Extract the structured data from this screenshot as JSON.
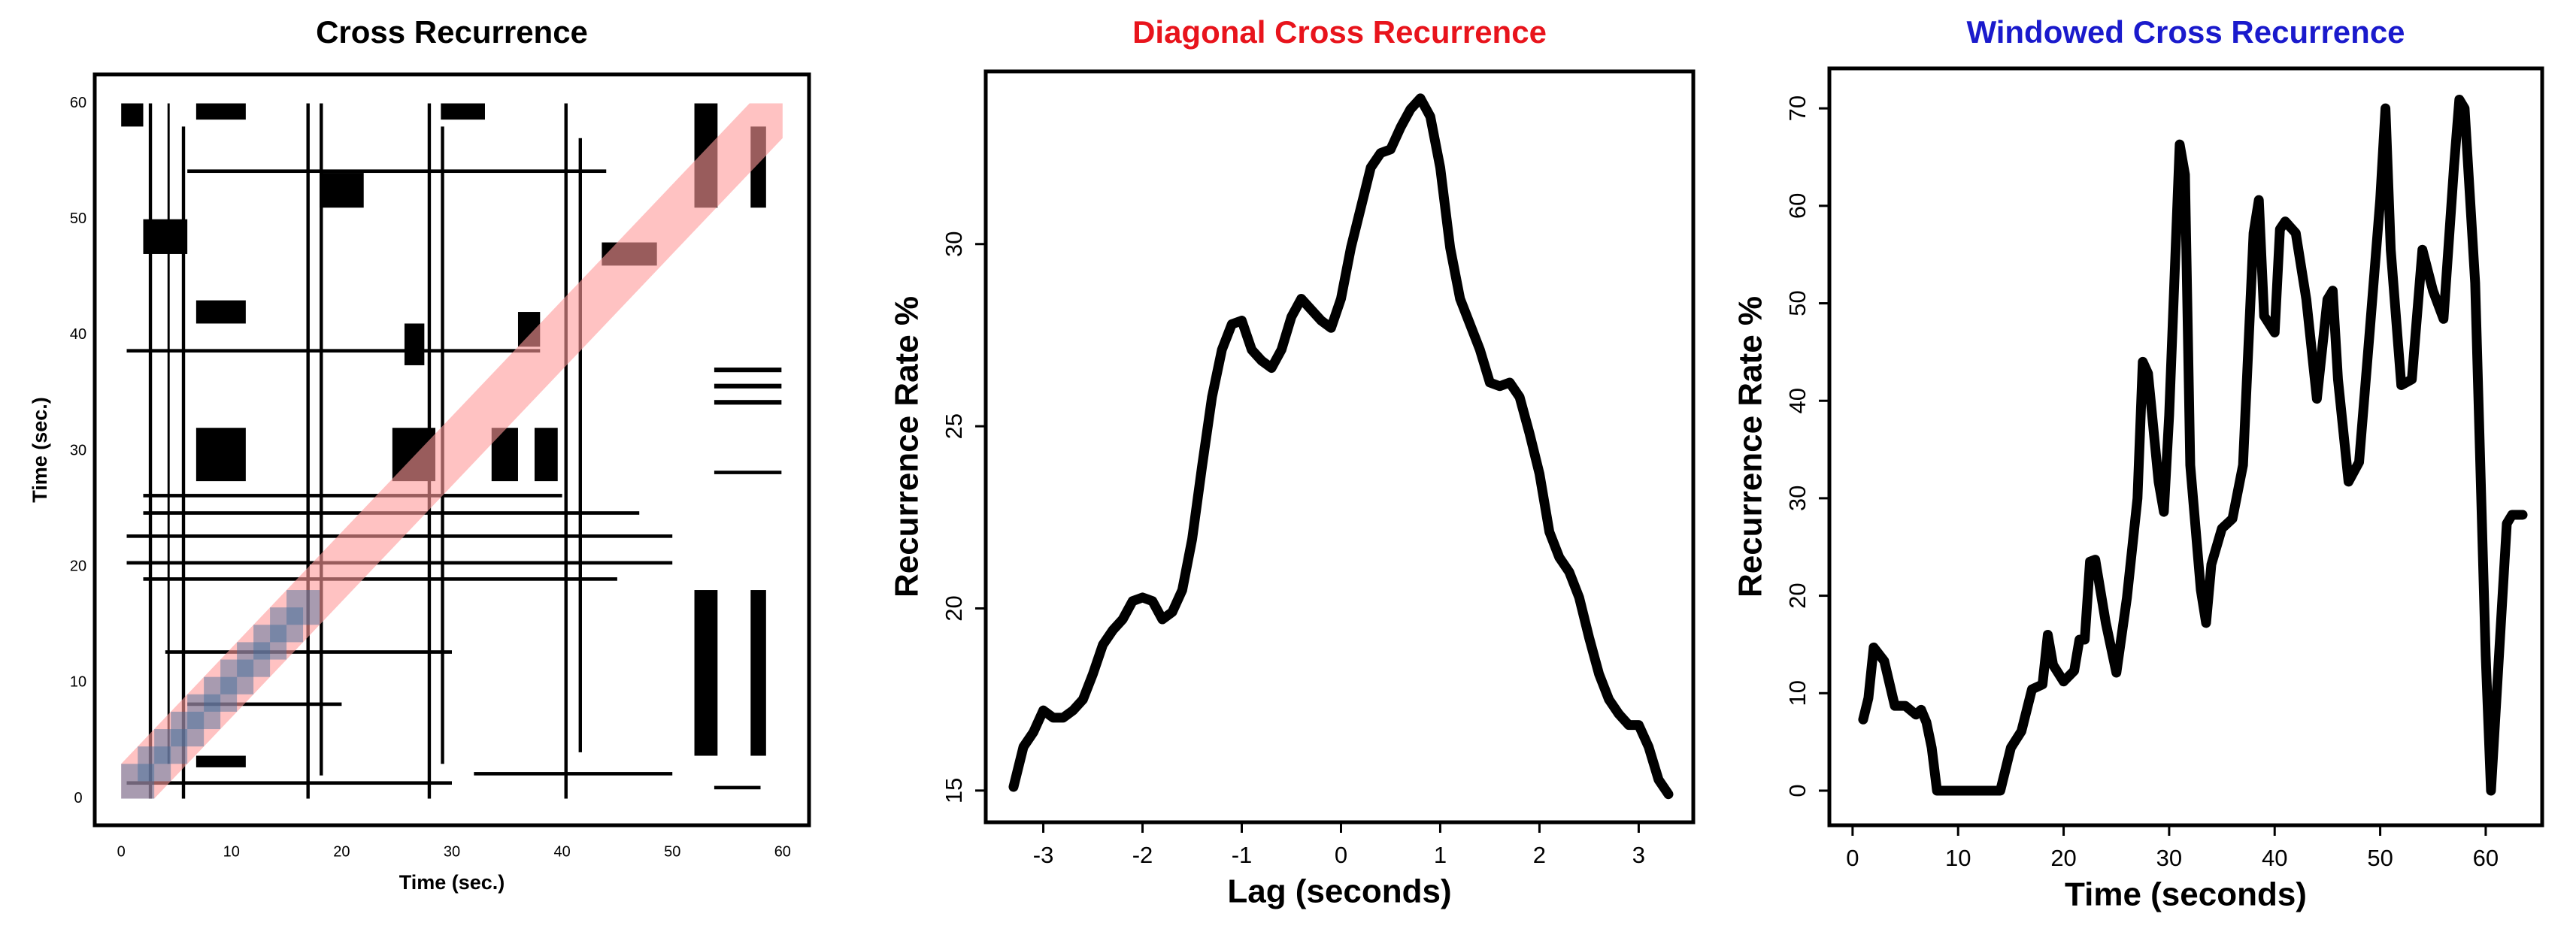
{
  "chart_data": [
    {
      "type": "recurrence",
      "title": "Cross Recurrence",
      "title_color": "#000000",
      "x_label": "Time (sec.)",
      "y_label": "Time (sec.)",
      "xlim": [
        -2.4,
        62.4
      ],
      "ylim": [
        -2.3,
        62.5
      ],
      "xticks": [
        0,
        10,
        20,
        30,
        40,
        50,
        60
      ],
      "yticks": [
        0,
        10,
        20,
        30,
        40,
        50,
        60
      ],
      "block_color": "#000000",
      "band_color": "#ff9a9a",
      "band_lag": 3,
      "window_color": "#3f6d9c",
      "window_size": 3,
      "window_step": 1.5,
      "window_end": 18,
      "blocks": [
        {
          "x": [
            2.5,
            2.8
          ],
          "y": [
            0,
            60
          ]
        },
        {
          "x": [
            4.2,
            4.4
          ],
          "y": [
            3,
            60
          ]
        },
        {
          "x": [
            5.5,
            5.8
          ],
          "y": [
            0,
            58
          ]
        },
        {
          "x": [
            16.8,
            17.1
          ],
          "y": [
            0,
            60
          ]
        },
        {
          "x": [
            18.0,
            18.3
          ],
          "y": [
            2,
            60
          ]
        },
        {
          "x": [
            27.8,
            28.1
          ],
          "y": [
            0,
            60
          ]
        },
        {
          "x": [
            29.0,
            29.3
          ],
          "y": [
            3,
            58
          ]
        },
        {
          "x": [
            40.2,
            40.5
          ],
          "y": [
            0,
            60
          ]
        },
        {
          "x": [
            41.5,
            41.8
          ],
          "y": [
            4,
            57
          ]
        },
        {
          "x": [
            6.8,
            11.3
          ],
          "y": [
            27.4,
            32.0
          ]
        },
        {
          "x": [
            24.6,
            28.5
          ],
          "y": [
            27.4,
            32.0
          ]
        },
        {
          "x": [
            33.6,
            36.0
          ],
          "y": [
            27.4,
            32.0
          ]
        },
        {
          "x": [
            37.5,
            39.6
          ],
          "y": [
            27.4,
            32.0
          ]
        },
        {
          "x": [
            6.8,
            11.3
          ],
          "y": [
            41,
            43
          ]
        },
        {
          "x": [
            25.7,
            27.5
          ],
          "y": [
            37.4,
            41
          ]
        },
        {
          "x": [
            36,
            38
          ],
          "y": [
            39,
            42
          ]
        },
        {
          "x": [
            43.6,
            48.6
          ],
          "y": [
            46,
            48
          ]
        },
        {
          "x": [
            52,
            54.1
          ],
          "y": [
            3.7,
            18
          ]
        },
        {
          "x": [
            57.1,
            58.5
          ],
          "y": [
            3.7,
            18
          ]
        },
        {
          "x": [
            52,
            54.1
          ],
          "y": [
            51,
            60
          ]
        },
        {
          "x": [
            57.1,
            58.5
          ],
          "y": [
            51,
            58
          ]
        },
        {
          "x": [
            6.8,
            11.3
          ],
          "y": [
            58.6,
            60
          ]
        },
        {
          "x": [
            6.8,
            11.3
          ],
          "y": [
            2.7,
            3.7
          ]
        },
        {
          "x": [
            18,
            22
          ],
          "y": [
            51,
            54
          ]
        },
        {
          "x": [
            29,
            33
          ],
          "y": [
            58.6,
            60
          ]
        },
        {
          "x": [
            2,
            6
          ],
          "y": [
            47,
            50
          ]
        },
        {
          "x": [
            0,
            2
          ],
          "y": [
            58,
            60
          ]
        },
        {
          "x": [
            53.8,
            59.9
          ],
          "y": [
            34,
            34.4
          ]
        },
        {
          "x": [
            53.8,
            59.9
          ],
          "y": [
            35.4,
            35.8
          ]
        },
        {
          "x": [
            53.8,
            59.9
          ],
          "y": [
            36.8,
            37.2
          ]
        },
        {
          "x": [
            53.8,
            59.9
          ],
          "y": [
            28,
            28.3
          ]
        },
        {
          "x": [
            0.5,
            50
          ],
          "y": [
            22.5,
            22.8
          ]
        },
        {
          "x": [
            0.5,
            50
          ],
          "y": [
            20.2,
            20.5
          ]
        },
        {
          "x": [
            2,
            47
          ],
          "y": [
            24.5,
            24.8
          ]
        },
        {
          "x": [
            2,
            45
          ],
          "y": [
            18.8,
            19.1
          ]
        },
        {
          "x": [
            2,
            40
          ],
          "y": [
            26,
            26.3
          ]
        },
        {
          "x": [
            53.8,
            58
          ],
          "y": [
            0.8,
            1.1
          ]
        },
        {
          "x": [
            0.5,
            30
          ],
          "y": [
            1.2,
            1.5
          ]
        },
        {
          "x": [
            32,
            50
          ],
          "y": [
            2,
            2.3
          ]
        },
        {
          "x": [
            6,
            44
          ],
          "y": [
            54,
            54.3
          ]
        },
        {
          "x": [
            0.5,
            38
          ],
          "y": [
            38.5,
            38.8
          ]
        },
        {
          "x": [
            4,
            30
          ],
          "y": [
            12.5,
            12.8
          ]
        },
        {
          "x": [
            6,
            20
          ],
          "y": [
            8,
            8.3
          ]
        }
      ]
    },
    {
      "type": "line",
      "title": "Diagonal Cross Recurrence",
      "title_color": "#e8141c",
      "x_label": "Lag (seconds)",
      "y_label": "Recurrence Rate %",
      "color": "#000000",
      "xlim": [
        -3.58,
        3.55
      ],
      "ylim": [
        14.13,
        34.74
      ],
      "xticks": [
        -3,
        -2,
        -1,
        0,
        1,
        2,
        3
      ],
      "yticks": [
        15,
        20,
        25,
        30
      ],
      "x": [
        -3.3,
        -3.2,
        -3.1,
        -3.0,
        -2.9,
        -2.8,
        -2.7,
        -2.6,
        -2.5,
        -2.4,
        -2.3,
        -2.2,
        -2.1,
        -2.0,
        -1.9,
        -1.8,
        -1.7,
        -1.6,
        -1.5,
        -1.4,
        -1.3,
        -1.2,
        -1.1,
        -1.0,
        -0.9,
        -0.8,
        -0.7,
        -0.6,
        -0.5,
        -0.4,
        -0.3,
        -0.2,
        -0.1,
        0.0,
        0.1,
        0.2,
        0.3,
        0.4,
        0.5,
        0.6,
        0.7,
        0.8,
        0.9,
        1.0,
        1.1,
        1.2,
        1.3,
        1.4,
        1.5,
        1.6,
        1.7,
        1.8,
        1.9,
        2.0,
        2.1,
        2.2,
        2.3,
        2.4,
        2.5,
        2.6,
        2.7,
        2.8,
        2.9,
        3.0,
        3.1,
        3.2,
        3.3
      ],
      "values": [
        15.1,
        16.2,
        16.6,
        17.2,
        17.0,
        17.0,
        17.2,
        17.5,
        18.2,
        19.0,
        19.4,
        19.7,
        20.2,
        20.3,
        20.2,
        19.7,
        19.9,
        20.5,
        21.9,
        23.9,
        25.8,
        27.1,
        27.8,
        27.9,
        27.1,
        26.8,
        26.6,
        27.1,
        28.0,
        28.5,
        28.2,
        27.9,
        27.7,
        28.5,
        29.9,
        31.0,
        32.1,
        32.5,
        32.6,
        33.2,
        33.7,
        34.0,
        33.5,
        32.1,
        29.9,
        28.5,
        27.8,
        27.1,
        26.2,
        26.1,
        26.2,
        25.8,
        24.8,
        23.7,
        22.1,
        21.4,
        21.0,
        20.3,
        19.2,
        18.2,
        17.5,
        17.1,
        16.8,
        16.8,
        16.2,
        15.3,
        14.9
      ]
    },
    {
      "type": "line",
      "title": "Windowed Cross Recurrence",
      "title_color": "#1a1acc",
      "x_label": "Time (seconds)",
      "y_label": "Recurrence Rate %",
      "color": "#000000",
      "xlim": [
        -2.2,
        65.35
      ],
      "ylim": [
        -3.55,
        74.1
      ],
      "xticks": [
        0,
        10,
        20,
        30,
        40,
        50,
        60
      ],
      "yticks": [
        0,
        10,
        20,
        30,
        40,
        50,
        60,
        70
      ],
      "x": [
        1,
        1.5,
        2,
        3,
        4,
        5,
        6,
        6.5,
        7,
        7.5,
        8,
        14,
        15,
        16,
        17,
        18,
        18.5,
        19,
        20,
        21,
        21.5,
        22,
        22.5,
        23,
        24,
        25,
        26,
        27,
        27.5,
        28,
        29,
        29.5,
        30,
        31,
        31.5,
        32,
        33,
        33.5,
        34,
        35,
        36,
        37,
        38,
        38.5,
        39,
        40,
        40.5,
        41,
        42,
        43,
        44,
        45,
        45.5,
        46,
        47,
        48,
        49,
        50,
        50.5,
        51,
        52,
        53,
        54,
        55,
        56,
        57,
        57.5,
        58,
        59,
        60,
        60.5,
        62,
        62.5,
        63.5
      ],
      "values": [
        7.3,
        9.5,
        14.7,
        13.3,
        8.7,
        8.7,
        7.8,
        8.3,
        7.0,
        4.4,
        0,
        0,
        4.4,
        6.1,
        10.4,
        10.9,
        16.0,
        12.9,
        11.2,
        12.3,
        15.5,
        15.5,
        23.5,
        23.7,
        17.2,
        12.1,
        19.8,
        30.0,
        44,
        42.8,
        31.7,
        28.6,
        38.5,
        66.3,
        63.2,
        33.4,
        20.6,
        17.2,
        23.2,
        26.9,
        27.9,
        33.4,
        57.2,
        60.6,
        48.7,
        47.0,
        57.6,
        58.4,
        57.2,
        50.4,
        40.2,
        50.4,
        51.3,
        42.2,
        31.7,
        33.7,
        47.0,
        60.6,
        70.0,
        55.5,
        41.6,
        42.2,
        55.5,
        51.3,
        48.4,
        64.1,
        70.9,
        70.0,
        52.1,
        13.8,
        0,
        27.4,
        28.3,
        28.3
      ]
    }
  ]
}
